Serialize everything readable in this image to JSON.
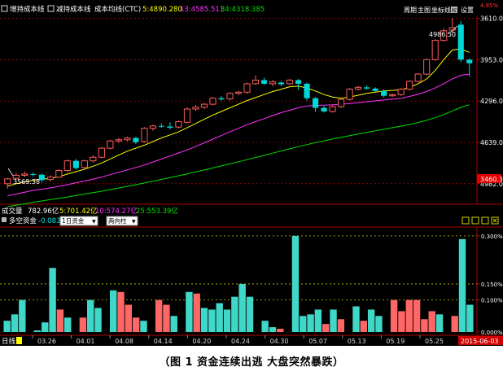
{
  "top_bar": {
    "check1_label": "增持成本线",
    "check2_label": "减持成本线",
    "ma_label": "成本均线(CTC)",
    "ma_value_1": "5:4890.280",
    "ma_value_2": "13:4585.511",
    "ma_value_3": "34:4318.385",
    "right_buttons": [
      "周期",
      "主图",
      "坐标线",
      "权",
      "设置"
    ],
    "corner_value": "4.85%"
  },
  "price_panel": {
    "y_ticks": [
      "4982.0",
      "4639.0",
      "4296.0",
      "3953.0",
      "3610.0"
    ],
    "current_price_tag": "3460.3",
    "high_annotation": "4986.50",
    "low_annotation": "3569.38"
  },
  "volume_bar": {
    "label": "成交量",
    "total": "782.96亿",
    "v5": "5:701.42亿",
    "v10": "10:574.27亿",
    "v25": "25:553.39亿"
  },
  "flow_panel": {
    "label": "多空资金",
    "value": "-0.083%",
    "period_select": "1日资金",
    "type_select": "两向柱",
    "y_ticks": [
      "0.300%",
      "0.150%",
      "0.100%",
      "0.000%"
    ]
  },
  "date_axis": {
    "left_label": "日线",
    "dates": [
      "03.26",
      "04.01",
      "04.08",
      "04.14",
      "04.20",
      "04.24",
      "04.30",
      "05.07",
      "05.13",
      "05.19",
      "05.25"
    ],
    "current_date": "2015-06-03"
  },
  "caption": "（图 1    资金连续出逃  大盘突然暴跌）",
  "colors": {
    "up": "#ff5a5a",
    "down": "#00d8d8",
    "flow_out": "#3fd8c8",
    "flow_in": "#ff6666",
    "ma5": "#ffff00",
    "ma13": "#ff33ff",
    "ma34": "#00e000",
    "grid": "#b00000"
  },
  "chart_data": [
    {
      "type": "candlestick",
      "title": "",
      "ylim": [
        3460,
        5000
      ],
      "y_ticks": [
        3610,
        3953,
        4296,
        4639,
        4982
      ],
      "annotations": [
        {
          "text": "4986.50",
          "type": "high"
        },
        {
          "text": "3569.38",
          "type": "low"
        }
      ],
      "candles": [
        {
          "o": 3610,
          "c": 3650,
          "h": 3660,
          "l": 3569
        },
        {
          "o": 3655,
          "c": 3680,
          "h": 3700,
          "l": 3640
        },
        {
          "o": 3680,
          "c": 3690,
          "h": 3710,
          "l": 3665
        },
        {
          "o": 3690,
          "c": 3685,
          "h": 3705,
          "l": 3670
        },
        {
          "o": 3685,
          "c": 3640,
          "h": 3695,
          "l": 3620
        },
        {
          "o": 3645,
          "c": 3665,
          "h": 3680,
          "l": 3630
        },
        {
          "o": 3665,
          "c": 3720,
          "h": 3730,
          "l": 3655
        },
        {
          "o": 3720,
          "c": 3800,
          "h": 3810,
          "l": 3710
        },
        {
          "o": 3800,
          "c": 3740,
          "h": 3815,
          "l": 3725
        },
        {
          "o": 3745,
          "c": 3800,
          "h": 3810,
          "l": 3730
        },
        {
          "o": 3800,
          "c": 3830,
          "h": 3845,
          "l": 3785
        },
        {
          "o": 3830,
          "c": 3905,
          "h": 3915,
          "l": 3820
        },
        {
          "o": 3905,
          "c": 3965,
          "h": 3975,
          "l": 3895
        },
        {
          "o": 3965,
          "c": 3975,
          "h": 3990,
          "l": 3950
        },
        {
          "o": 3975,
          "c": 3990,
          "h": 4000,
          "l": 3960
        },
        {
          "o": 3990,
          "c": 3955,
          "h": 4000,
          "l": 3940
        },
        {
          "o": 3960,
          "c": 4070,
          "h": 4080,
          "l": 3950
        },
        {
          "o": 4070,
          "c": 4090,
          "h": 4100,
          "l": 4050
        },
        {
          "o": 4090,
          "c": 4085,
          "h": 4110,
          "l": 4075
        },
        {
          "o": 4085,
          "c": 4075,
          "h": 4120,
          "l": 4060
        },
        {
          "o": 4080,
          "c": 4125,
          "h": 4135,
          "l": 4070
        },
        {
          "o": 4120,
          "c": 4230,
          "h": 4245,
          "l": 4110
        },
        {
          "o": 4230,
          "c": 4245,
          "h": 4265,
          "l": 4215
        },
        {
          "o": 4245,
          "c": 4270,
          "h": 4280,
          "l": 4230
        },
        {
          "o": 4270,
          "c": 4320,
          "h": 4330,
          "l": 4260
        },
        {
          "o": 4320,
          "c": 4310,
          "h": 4340,
          "l": 4300
        },
        {
          "o": 4315,
          "c": 4360,
          "h": 4370,
          "l": 4300
        },
        {
          "o": 4360,
          "c": 4370,
          "h": 4380,
          "l": 4345
        },
        {
          "o": 4370,
          "c": 4440,
          "h": 4450,
          "l": 4355
        },
        {
          "o": 4440,
          "c": 4470,
          "h": 4510,
          "l": 4430
        },
        {
          "o": 4470,
          "c": 4440,
          "h": 4490,
          "l": 4430
        },
        {
          "o": 4440,
          "c": 4455,
          "h": 4470,
          "l": 4420
        },
        {
          "o": 4450,
          "c": 4435,
          "h": 4460,
          "l": 4420
        },
        {
          "o": 4440,
          "c": 4470,
          "h": 4480,
          "l": 4430
        },
        {
          "o": 4470,
          "c": 4440,
          "h": 4480,
          "l": 4390
        },
        {
          "o": 4440,
          "c": 4320,
          "h": 4450,
          "l": 4300
        },
        {
          "o": 4320,
          "c": 4240,
          "h": 4330,
          "l": 4210
        },
        {
          "o": 4240,
          "c": 4210,
          "h": 4255,
          "l": 4200
        },
        {
          "o": 4210,
          "c": 4250,
          "h": 4260,
          "l": 4200
        },
        {
          "o": 4250,
          "c": 4310,
          "h": 4320,
          "l": 4240
        },
        {
          "o": 4310,
          "c": 4395,
          "h": 4405,
          "l": 4300
        },
        {
          "o": 4395,
          "c": 4410,
          "h": 4420,
          "l": 4385
        },
        {
          "o": 4410,
          "c": 4400,
          "h": 4425,
          "l": 4390
        },
        {
          "o": 4400,
          "c": 4380,
          "h": 4410,
          "l": 4365
        },
        {
          "o": 4380,
          "c": 4340,
          "h": 4395,
          "l": 4325
        },
        {
          "o": 4340,
          "c": 4350,
          "h": 4360,
          "l": 4330
        },
        {
          "o": 4350,
          "c": 4395,
          "h": 4405,
          "l": 4340
        },
        {
          "o": 4395,
          "c": 4460,
          "h": 4470,
          "l": 4385
        },
        {
          "o": 4460,
          "c": 4520,
          "h": 4530,
          "l": 4450
        },
        {
          "o": 4520,
          "c": 4640,
          "h": 4650,
          "l": 4510
        },
        {
          "o": 4640,
          "c": 4800,
          "h": 4810,
          "l": 4630
        },
        {
          "o": 4800,
          "c": 4880,
          "h": 4900,
          "l": 4790
        },
        {
          "o": 4885,
          "c": 4905,
          "h": 4986.5,
          "l": 4860
        },
        {
          "o": 4930,
          "c": 4640,
          "h": 4960,
          "l": 4620
        },
        {
          "o": 4640,
          "c": 4610,
          "h": 4650,
          "l": 4500
        }
      ],
      "series": [
        {
          "name": "5",
          "values": [
            3590,
            3610,
            3625,
            3640,
            3648,
            3655,
            3668,
            3690,
            3710,
            3730,
            3755,
            3782,
            3815,
            3848,
            3880,
            3905,
            3930,
            3960,
            3990,
            4015,
            4040,
            4075,
            4110,
            4145,
            4180,
            4210,
            4240,
            4270,
            4300,
            4325,
            4350,
            4375,
            4395,
            4415,
            4420,
            4405,
            4380,
            4350,
            4330,
            4320,
            4330,
            4345,
            4360,
            4370,
            4380,
            4385,
            4390,
            4410,
            4440,
            4480,
            4550,
            4640,
            4720,
            4730,
            4700
          ]
        },
        {
          "name": "13",
          "values": [
            3510,
            3525,
            3540,
            3555,
            3565,
            3575,
            3588,
            3602,
            3618,
            3633,
            3648,
            3665,
            3685,
            3705,
            3725,
            3745,
            3765,
            3790,
            3815,
            3840,
            3865,
            3890,
            3920,
            3950,
            3980,
            4010,
            4040,
            4070,
            4100,
            4125,
            4150,
            4175,
            4200,
            4220,
            4240,
            4255,
            4260,
            4262,
            4265,
            4270,
            4275,
            4282,
            4290,
            4298,
            4305,
            4312,
            4320,
            4335,
            4352,
            4375,
            4405,
            4440,
            4480,
            4510,
            4520
          ]
        },
        {
          "name": "34",
          "values": [
            3420,
            3432,
            3444,
            3456,
            3467,
            3478,
            3489,
            3500,
            3512,
            3524,
            3536,
            3548,
            3561,
            3574,
            3588,
            3602,
            3616,
            3631,
            3646,
            3661,
            3676,
            3692,
            3708,
            3724,
            3741,
            3758,
            3775,
            3792,
            3810,
            3828,
            3846,
            3864,
            3882,
            3900,
            3918,
            3935,
            3951,
            3966,
            3981,
            3995,
            4009,
            4023,
            4036,
            4049,
            4062,
            4075,
            4088,
            4102,
            4118,
            4136,
            4158,
            4184,
            4214,
            4244,
            4266
          ]
        }
      ]
    },
    {
      "type": "bar",
      "title": "多空资金",
      "ylim": [
        0,
        0.32
      ],
      "y_ticks": [
        0,
        0.1,
        0.15,
        0.3
      ],
      "unit": "%",
      "values": [
        0.035,
        0.055,
        0.1,
        0.0,
        0.005,
        0.03,
        0.2,
        0.07,
        0.045,
        0.0,
        0.045,
        0.1,
        0.075,
        0.0,
        0.13,
        0.125,
        0.085,
        0.045,
        0.035,
        0.0,
        0.1,
        0.085,
        0.05,
        0.0,
        0.125,
        0.12,
        0.075,
        0.07,
        0.09,
        0.07,
        0.11,
        0.15,
        0.11,
        0.0,
        0.035,
        0.015,
        0.01,
        0.0,
        0.3,
        0.05,
        0.055,
        0.07,
        0.025,
        0.07,
        0.04,
        0.0,
        0.08,
        0.035,
        0.07,
        0.05,
        0.0,
        0.1,
        0.065,
        0.1,
        0.1,
        0.04,
        0.065,
        0.055,
        0.0,
        0.05,
        0.29,
        0.085
      ],
      "directions": [
        "out",
        "out",
        "out",
        "in",
        "out",
        "out",
        "out",
        "in",
        "out",
        "in",
        "in",
        "out",
        "out",
        "in",
        "out",
        "in",
        "in",
        "in",
        "out",
        "in",
        "in",
        "in",
        "out",
        "in",
        "out",
        "in",
        "out",
        "out",
        "out",
        "out",
        "out",
        "out",
        "out",
        "in",
        "out",
        "out",
        "in",
        "in",
        "out",
        "out",
        "out",
        "out",
        "in",
        "out",
        "in",
        "out",
        "out",
        "in",
        "out",
        "out",
        "in",
        "in",
        "in",
        "in",
        "in",
        "in",
        "in",
        "out",
        "in",
        "in",
        "out",
        "out"
      ]
    }
  ]
}
